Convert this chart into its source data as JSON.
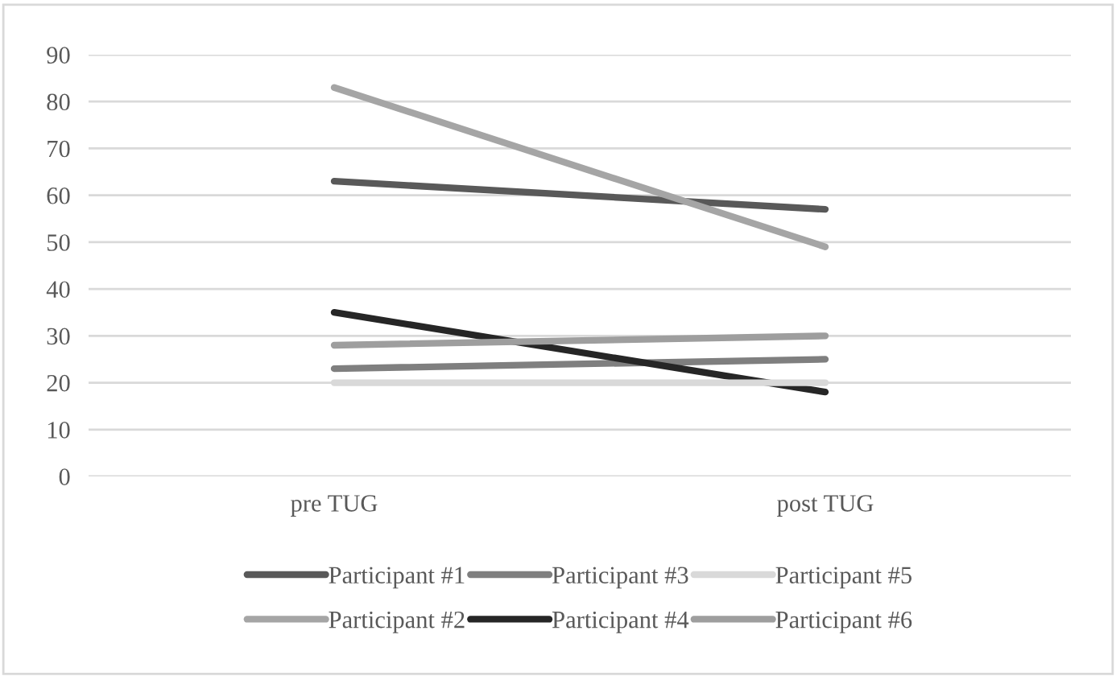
{
  "chart_data": {
    "type": "line",
    "categories": [
      "pre TUG",
      "post TUG"
    ],
    "series": [
      {
        "name": "Participant #1",
        "color": "#595959",
        "values": [
          63,
          57
        ]
      },
      {
        "name": "Participant #2",
        "color": "#a5a5a5",
        "values": [
          83,
          49
        ]
      },
      {
        "name": "Participant #3",
        "color": "#7f7f7f",
        "values": [
          23,
          25
        ]
      },
      {
        "name": "Participant #4",
        "color": "#262626",
        "values": [
          35,
          18
        ]
      },
      {
        "name": "Participant #5",
        "color": "#d9d9d9",
        "values": [
          20,
          20
        ]
      },
      {
        "name": "Participant #6",
        "color": "#9e9e9e",
        "values": [
          28,
          30
        ]
      }
    ],
    "ylim": [
      0,
      90
    ],
    "yticks": [
      0,
      10,
      20,
      30,
      40,
      50,
      60,
      70,
      80,
      90
    ],
    "grid": "y",
    "legend": "bottom",
    "marker": "none",
    "line_style": "solid"
  }
}
